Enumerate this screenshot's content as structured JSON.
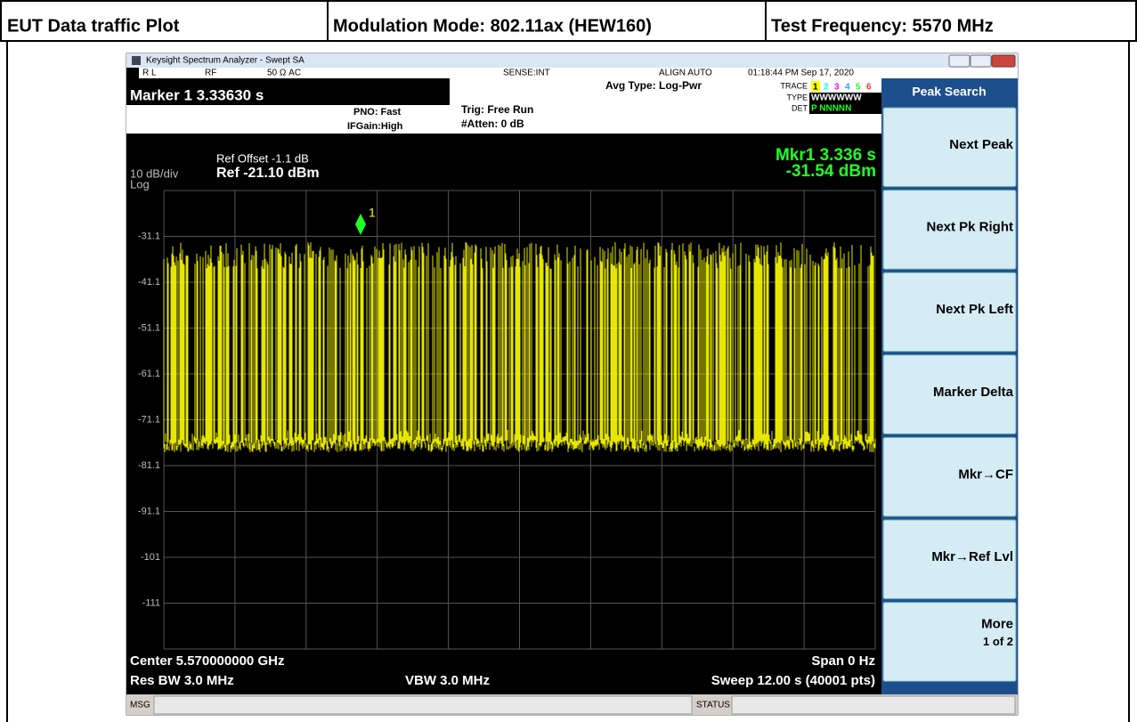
{
  "header": {
    "plot": "EUT Data traffic Plot",
    "mode": "Modulation Mode: 802.11ax (HEW160)",
    "frequency": "Test Frequency: 5570 MHz"
  },
  "window": {
    "title": "Keysight Spectrum Analyzer - Swept SA"
  },
  "status_bar": {
    "rl": "R L",
    "rf": "RF",
    "impedance": "50 Ω  AC",
    "sense": "SENSE:INT",
    "align": "ALIGN AUTO",
    "datetime": "01:18:44 PM Sep 17, 2020"
  },
  "marker": {
    "readout": "Marker 1  3.33630 s",
    "pno": "PNO: Fast",
    "ifgain": "IFGain:High",
    "trig": "Trig: Free Run",
    "atten": "#Atten: 0 dB",
    "avg": "Avg Type: Log-Pwr",
    "trace_label": "TRACE",
    "trace_numbers": [
      "1",
      "2",
      "3",
      "4",
      "5",
      "6"
    ],
    "type_label": "TYPE",
    "type_values": "WWWWWW",
    "det_label": "DET",
    "det_values": "P NNNNN"
  },
  "display": {
    "ref_offset": "Ref Offset -1.1 dB",
    "scale": "10 dB/div",
    "scale_type": "Log",
    "ref": "Ref -21.10 dBm",
    "mkr_time": "Mkr1 3.336 s",
    "mkr_level": "-31.54 dBm",
    "marker_number": "1",
    "y_labels": [
      "-31.1",
      "-41.1",
      "-51.1",
      "-61.1",
      "-71.1",
      "-81.1",
      "-91.1",
      "-101",
      "-111"
    ],
    "center": "Center 5.570000000 GHz",
    "span": "Span 0 Hz",
    "res_bw": "Res BW 3.0 MHz",
    "vbw": "VBW 3.0 MHz",
    "sweep": "Sweep  12.00 s (40001 pts)"
  },
  "softkeys": {
    "menu": "Peak Search",
    "keys": [
      "Next Peak",
      "Next Pk Right",
      "Next Pk Left",
      "Marker Delta",
      "Mkr→CF",
      "Mkr→Ref Lvl",
      "More"
    ],
    "more_page": "1 of 2"
  },
  "footer": {
    "msg": "MSG",
    "status": "STATUS"
  }
}
